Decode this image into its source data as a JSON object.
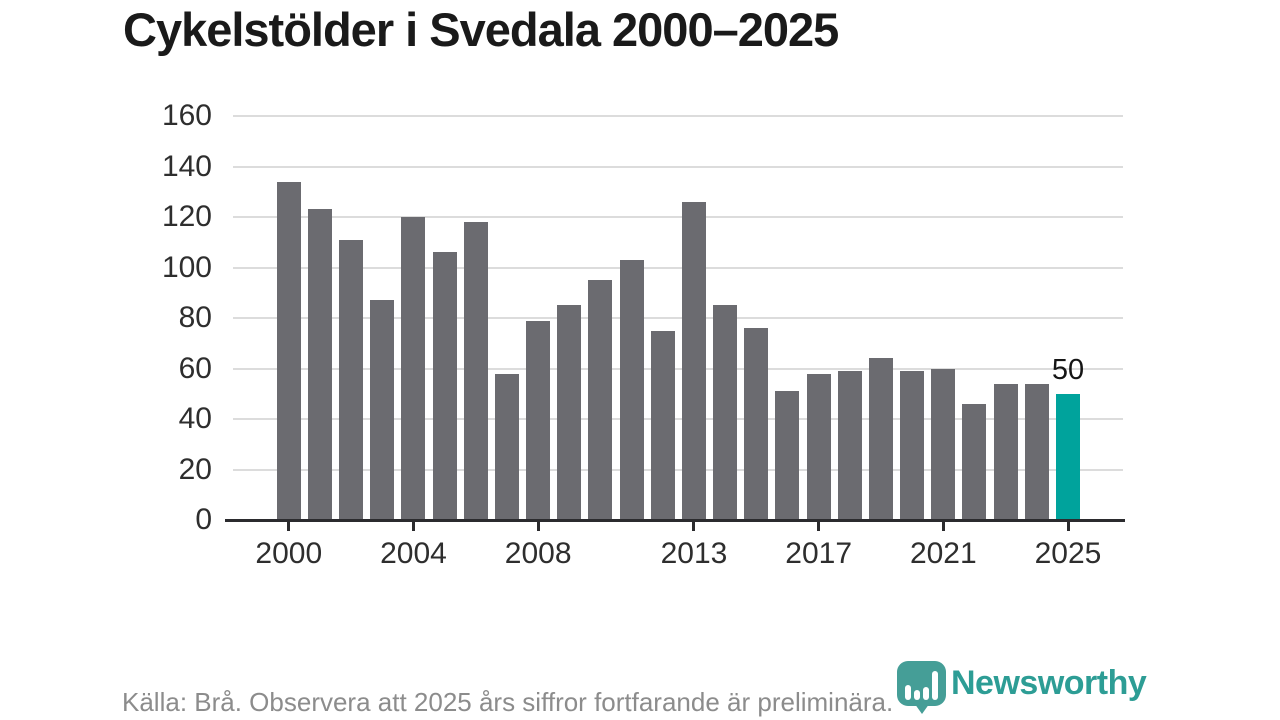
{
  "header": {
    "title": "Cykelstölder i Svedala 2000–2025"
  },
  "chart_data": {
    "type": "bar",
    "title": "Cykelstölder i Svedala 2000–2025",
    "xlabel": "",
    "ylabel": "",
    "ylim": [
      0,
      160
    ],
    "grid": "horizontal",
    "legend_position": "none",
    "x": [
      2000,
      2001,
      2002,
      2003,
      2004,
      2005,
      2006,
      2007,
      2008,
      2009,
      2010,
      2011,
      2012,
      2013,
      2014,
      2015,
      2016,
      2017,
      2018,
      2019,
      2020,
      2021,
      2022,
      2023,
      2024,
      2025
    ],
    "values": [
      134,
      123,
      111,
      87,
      120,
      106,
      118,
      58,
      79,
      85,
      95,
      103,
      75,
      126,
      85,
      76,
      51,
      58,
      59,
      64,
      59,
      60,
      46,
      54,
      54,
      50
    ],
    "y_ticks": [
      0,
      20,
      40,
      60,
      80,
      100,
      120,
      140,
      160
    ],
    "x_tick_years": [
      2000,
      2004,
      2008,
      2013,
      2017,
      2021,
      2025
    ],
    "x_tick_labels": [
      "2000",
      "2004",
      "2008",
      "2013",
      "2017",
      "2021",
      "2025"
    ],
    "highlight_year": 2025,
    "highlight_value_label": "50",
    "bar_color": "#6b6b70",
    "highlight_color": "#00a39c",
    "gridline_color": "#dcdcdc",
    "axis_color": "#2b2b2e"
  },
  "footer": {
    "source_note": "Källa: Brå. Observera att 2025 års siffror fortfarande är preliminära."
  },
  "logo": {
    "name": "Newsworthy",
    "color": "#2d9d95"
  }
}
